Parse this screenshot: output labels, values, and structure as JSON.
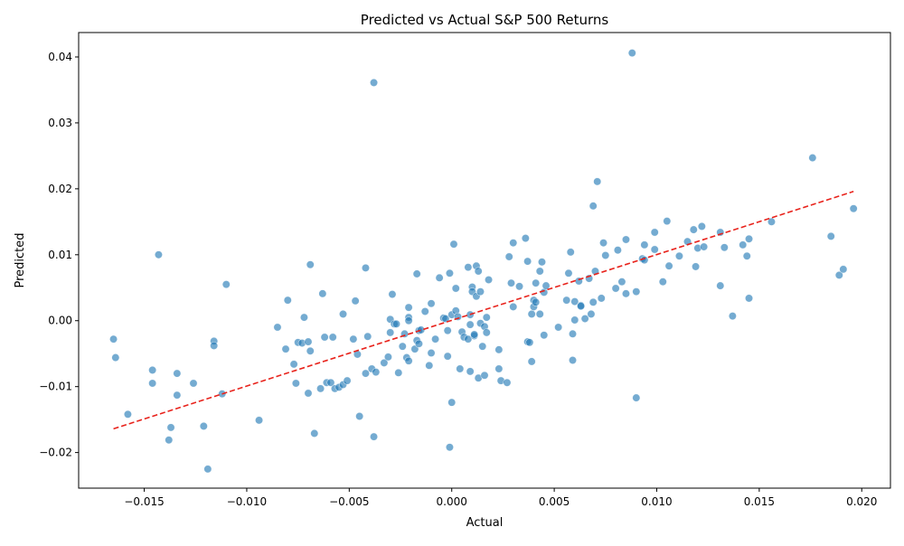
{
  "chart_data": {
    "type": "scatter",
    "title": "Predicted vs Actual S&P 500 Returns",
    "xlabel": "Actual",
    "ylabel": "Predicted",
    "xlim": [
      -0.0182,
      0.0214
    ],
    "ylim": [
      -0.0254,
      0.0437
    ],
    "xticks": [
      -0.015,
      -0.01,
      -0.005,
      0.0,
      0.005,
      0.01,
      0.015,
      0.02
    ],
    "xtick_labels": [
      "−0.015",
      "−0.010",
      "−0.005",
      "0.000",
      "0.005",
      "0.010",
      "0.015",
      "0.020"
    ],
    "yticks": [
      -0.02,
      -0.01,
      0.0,
      0.01,
      0.02,
      0.03,
      0.04
    ],
    "ytick_labels": [
      "−0.02",
      "−0.01",
      "0.00",
      "0.01",
      "0.02",
      "0.03",
      "0.04"
    ],
    "grid": false,
    "colors": {
      "points": "#1f77b4",
      "points_edge": "#ffffff",
      "fit_line": "#e8221b",
      "axes": "#000000"
    },
    "fit_line": {
      "style": "dashed",
      "x": [
        -0.0165,
        0.0196
      ],
      "y": [
        -0.0164,
        0.0196
      ]
    },
    "points": [
      [
        -0.0165,
        -0.0028
      ],
      [
        -0.0164,
        -0.0056
      ],
      [
        -0.0158,
        -0.0142
      ],
      [
        -0.0146,
        -0.0075
      ],
      [
        -0.0146,
        -0.0095
      ],
      [
        -0.0143,
        0.01
      ],
      [
        -0.0137,
        -0.0162
      ],
      [
        -0.0138,
        -0.0181
      ],
      [
        -0.0134,
        -0.008
      ],
      [
        -0.0134,
        -0.0113
      ],
      [
        -0.0126,
        -0.0095
      ],
      [
        -0.0121,
        -0.016
      ],
      [
        -0.0119,
        -0.0225
      ],
      [
        -0.0116,
        -0.0031
      ],
      [
        -0.0116,
        -0.0038
      ],
      [
        -0.0112,
        -0.0111
      ],
      [
        -0.011,
        0.0055
      ],
      [
        -0.0094,
        -0.0151
      ],
      [
        -0.0085,
        -0.001
      ],
      [
        -0.0081,
        -0.0043
      ],
      [
        -0.008,
        0.0031
      ],
      [
        -0.0077,
        -0.0066
      ],
      [
        -0.0076,
        -0.0095
      ],
      [
        -0.0075,
        -0.0033
      ],
      [
        -0.0073,
        -0.0034
      ],
      [
        -0.0072,
        0.0005
      ],
      [
        -0.007,
        -0.0032
      ],
      [
        -0.007,
        -0.011
      ],
      [
        -0.0069,
        0.0085
      ],
      [
        -0.0069,
        -0.0046
      ],
      [
        -0.0067,
        -0.0171
      ],
      [
        -0.0064,
        -0.0103
      ],
      [
        -0.0063,
        0.0041
      ],
      [
        -0.0062,
        -0.0025
      ],
      [
        -0.0061,
        -0.0094
      ],
      [
        -0.0059,
        -0.0094
      ],
      [
        -0.0058,
        -0.0025
      ],
      [
        -0.0057,
        -0.0103
      ],
      [
        -0.0055,
        -0.0101
      ],
      [
        -0.0053,
        -0.0097
      ],
      [
        -0.0053,
        0.001
      ],
      [
        -0.0051,
        -0.0091
      ],
      [
        -0.0048,
        -0.0028
      ],
      [
        -0.0047,
        0.003
      ],
      [
        -0.0046,
        -0.0051
      ],
      [
        -0.0045,
        -0.0145
      ],
      [
        -0.0042,
        0.008
      ],
      [
        -0.0042,
        -0.008
      ],
      [
        -0.0041,
        -0.0024
      ],
      [
        -0.0039,
        -0.0073
      ],
      [
        -0.0038,
        0.0361
      ],
      [
        -0.0038,
        -0.0176
      ],
      [
        -0.0037,
        -0.0078
      ],
      [
        -0.0033,
        -0.0064
      ],
      [
        -0.0031,
        -0.0055
      ],
      [
        -0.003,
        0.0002
      ],
      [
        -0.003,
        -0.0018
      ],
      [
        -0.0029,
        0.004
      ],
      [
        -0.0028,
        -0.0005
      ],
      [
        -0.0027,
        -0.0005
      ],
      [
        -0.0026,
        -0.0079
      ],
      [
        -0.0024,
        -0.0039
      ],
      [
        -0.0023,
        -0.002
      ],
      [
        -0.0022,
        -0.0056
      ],
      [
        -0.0021,
        0.002
      ],
      [
        -0.0021,
        0.0005
      ],
      [
        -0.0021,
        -0.0061
      ],
      [
        -0.0021,
        0.0
      ],
      [
        -0.0018,
        -0.0043
      ],
      [
        -0.0017,
        0.0071
      ],
      [
        -0.0017,
        -0.003
      ],
      [
        -0.0016,
        -0.0035
      ],
      [
        -0.0016,
        -0.0015
      ],
      [
        -0.0015,
        -0.0014
      ],
      [
        -0.0013,
        0.0014
      ],
      [
        -0.0011,
        -0.0068
      ],
      [
        -0.001,
        0.0026
      ],
      [
        -0.001,
        -0.0049
      ],
      [
        -0.0008,
        -0.0028
      ],
      [
        -0.0006,
        0.0065
      ],
      [
        -0.0004,
        0.0004
      ],
      [
        -0.0003,
        0.0003
      ],
      [
        -0.0002,
        -0.0015
      ],
      [
        -0.0002,
        -0.0054
      ],
      [
        -0.0001,
        0.0072
      ],
      [
        -0.0001,
        -0.0192
      ],
      [
        0.0,
        -0.0124
      ],
      [
        0.0,
        0.0009
      ],
      [
        0.0001,
        0.0116
      ],
      [
        0.0002,
        0.0049
      ],
      [
        0.0002,
        0.0015
      ],
      [
        0.0003,
        0.0006
      ],
      [
        0.0004,
        -0.0073
      ],
      [
        0.0005,
        -0.0017
      ],
      [
        0.0006,
        -0.0025
      ],
      [
        0.0008,
        -0.0028
      ],
      [
        0.0008,
        0.0081
      ],
      [
        0.0009,
        0.0009
      ],
      [
        0.0009,
        -0.0006
      ],
      [
        0.0009,
        -0.0077
      ],
      [
        0.001,
        0.0051
      ],
      [
        0.001,
        0.0044
      ],
      [
        0.0011,
        -0.0023
      ],
      [
        0.0011,
        -0.0021
      ],
      [
        0.0012,
        0.0037
      ],
      [
        0.0012,
        0.0083
      ],
      [
        0.0013,
        0.0075
      ],
      [
        0.0013,
        -0.0087
      ],
      [
        0.0014,
        0.0044
      ],
      [
        0.0014,
        -0.0004
      ],
      [
        0.0015,
        -0.0039
      ],
      [
        0.0016,
        -0.0009
      ],
      [
        0.0016,
        -0.0083
      ],
      [
        0.0017,
        0.0005
      ],
      [
        0.0017,
        -0.0018
      ],
      [
        0.0018,
        0.0062
      ],
      [
        0.0023,
        -0.0044
      ],
      [
        0.0023,
        -0.0073
      ],
      [
        0.0024,
        -0.0091
      ],
      [
        0.0027,
        -0.0094
      ],
      [
        0.0028,
        0.0097
      ],
      [
        0.0029,
        0.0057
      ],
      [
        0.003,
        0.0021
      ],
      [
        0.003,
        0.0118
      ],
      [
        0.0033,
        0.0052
      ],
      [
        0.0036,
        0.0125
      ],
      [
        0.0037,
        0.009
      ],
      [
        0.0037,
        -0.0032
      ],
      [
        0.0038,
        -0.0033
      ],
      [
        0.0039,
        0.001
      ],
      [
        0.0039,
        -0.0062
      ],
      [
        0.004,
        0.0031
      ],
      [
        0.004,
        0.0021
      ],
      [
        0.0041,
        0.0057
      ],
      [
        0.0041,
        0.0028
      ],
      [
        0.0043,
        0.0075
      ],
      [
        0.0043,
        0.001
      ],
      [
        0.0044,
        0.0089
      ],
      [
        0.0045,
        0.0043
      ],
      [
        0.0045,
        -0.0022
      ],
      [
        0.0046,
        0.0053
      ],
      [
        0.0052,
        -0.001
      ],
      [
        0.0056,
        0.0031
      ],
      [
        0.0057,
        0.0072
      ],
      [
        0.0058,
        0.0104
      ],
      [
        0.0059,
        -0.002
      ],
      [
        0.0059,
        -0.006
      ],
      [
        0.006,
        0.0029
      ],
      [
        0.006,
        0.0001
      ],
      [
        0.0062,
        0.006
      ],
      [
        0.0063,
        0.0023
      ],
      [
        0.0063,
        0.0022
      ],
      [
        0.0065,
        0.0003
      ],
      [
        0.0067,
        0.0064
      ],
      [
        0.0068,
        0.001
      ],
      [
        0.0069,
        0.0028
      ],
      [
        0.0069,
        0.0174
      ],
      [
        0.007,
        0.0075
      ],
      [
        0.0071,
        0.0211
      ],
      [
        0.0073,
        0.0034
      ],
      [
        0.0074,
        0.0118
      ],
      [
        0.0075,
        0.0099
      ],
      [
        0.008,
        0.0049
      ],
      [
        0.0081,
        0.0107
      ],
      [
        0.0083,
        0.0059
      ],
      [
        0.0085,
        0.0123
      ],
      [
        0.0085,
        0.0041
      ],
      [
        0.0088,
        0.0406
      ],
      [
        0.009,
        0.0044
      ],
      [
        0.009,
        -0.0117
      ],
      [
        0.0093,
        0.0094
      ],
      [
        0.0094,
        0.0092
      ],
      [
        0.0094,
        0.0115
      ],
      [
        0.0099,
        0.0108
      ],
      [
        0.0099,
        0.0134
      ],
      [
        0.0103,
        0.0059
      ],
      [
        0.0105,
        0.0151
      ],
      [
        0.0106,
        0.0083
      ],
      [
        0.0111,
        0.0098
      ],
      [
        0.0115,
        0.012
      ],
      [
        0.0118,
        0.0138
      ],
      [
        0.0119,
        0.0082
      ],
      [
        0.012,
        0.011
      ],
      [
        0.0122,
        0.0143
      ],
      [
        0.0123,
        0.0112
      ],
      [
        0.0131,
        0.0053
      ],
      [
        0.0131,
        0.0134
      ],
      [
        0.0133,
        0.0111
      ],
      [
        0.0137,
        0.0007
      ],
      [
        0.0142,
        0.0115
      ],
      [
        0.0144,
        0.0098
      ],
      [
        0.0145,
        0.0124
      ],
      [
        0.0145,
        0.0034
      ],
      [
        0.0156,
        0.015
      ],
      [
        0.0176,
        0.0247
      ],
      [
        0.0185,
        0.0128
      ],
      [
        0.0189,
        0.0069
      ],
      [
        0.0191,
        0.0078
      ],
      [
        0.0196,
        0.017
      ]
    ]
  }
}
